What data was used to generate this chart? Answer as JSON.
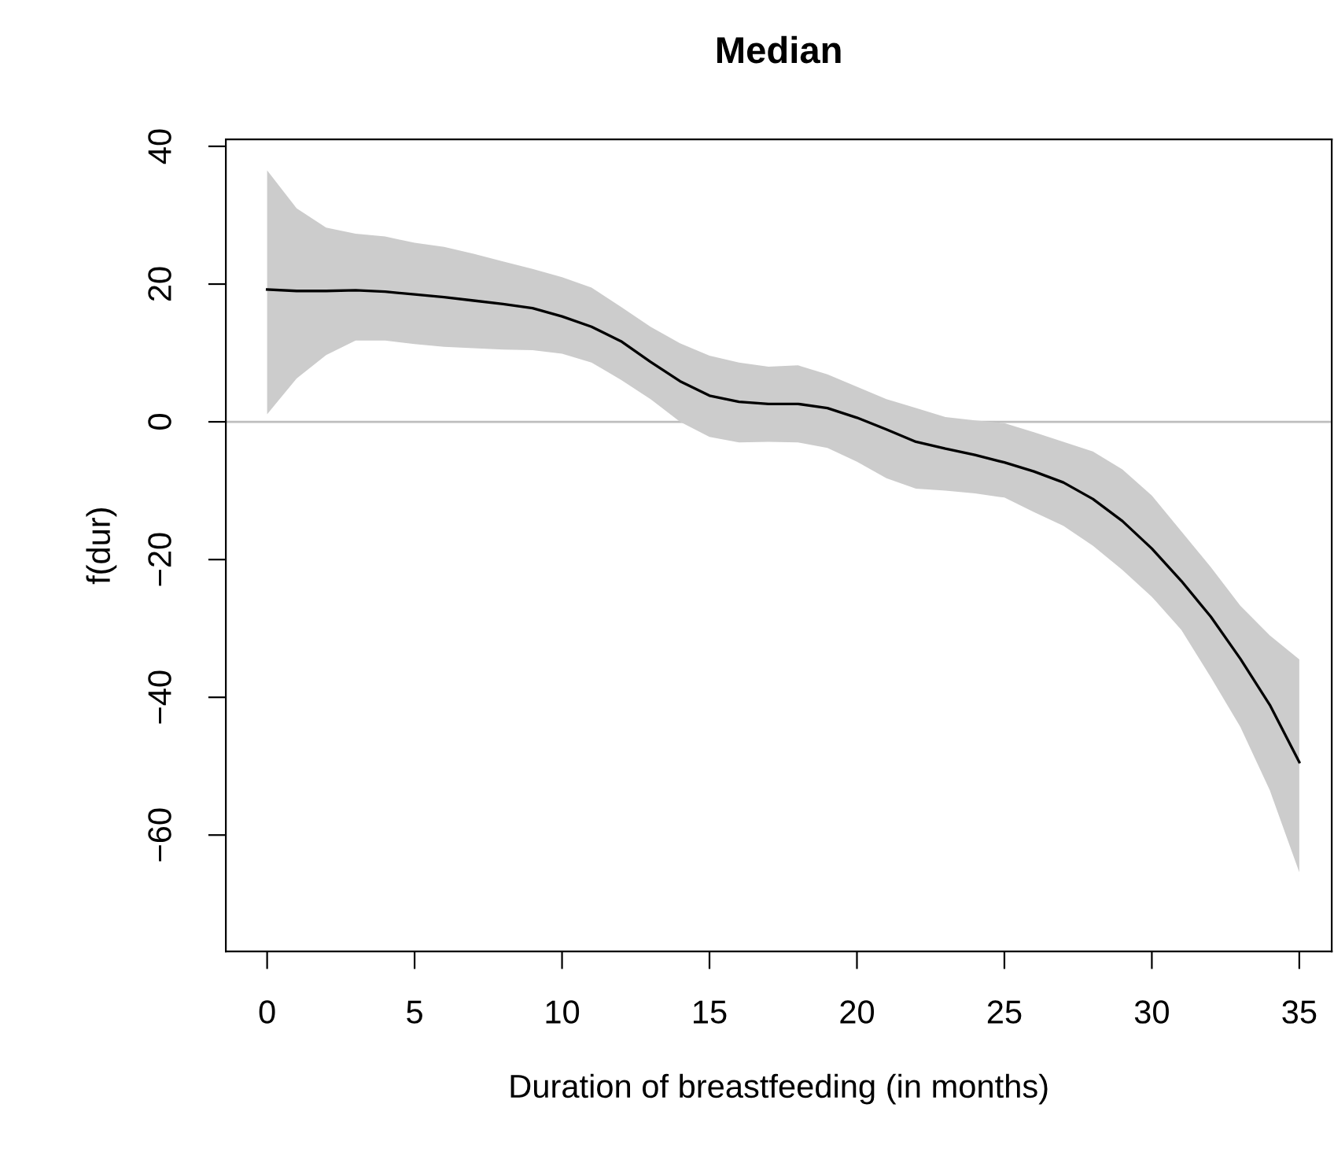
{
  "chart_data": {
    "type": "line",
    "title": "Median",
    "xlabel": "Duration of breastfeeding (in months)",
    "ylabel": "f(dur)",
    "x": [
      0,
      1,
      2,
      3,
      4,
      5,
      6,
      7,
      8,
      9,
      10,
      11,
      12,
      13,
      14,
      15,
      16,
      17,
      18,
      19,
      20,
      21,
      22,
      23,
      24,
      25,
      26,
      27,
      28,
      29,
      30,
      31,
      32,
      33,
      34,
      35
    ],
    "series": [
      {
        "color": "#000000",
        "values": [
          19.2,
          19.0,
          19.0,
          19.1,
          18.9,
          18.5,
          18.1,
          17.6,
          17.1,
          16.5,
          15.3,
          13.8,
          11.7,
          8.7,
          5.9,
          3.8,
          2.9,
          2.6,
          2.6,
          2.0,
          0.6,
          -1.1,
          -2.9,
          -3.9,
          -4.8,
          -5.9,
          -7.2,
          -8.8,
          -11.2,
          -14.4,
          -18.4,
          -23.1,
          -28.3,
          -34.4,
          -41.1,
          -49.4
        ],
        "upper": [
          36.5,
          31.0,
          28.2,
          27.3,
          26.9,
          26.0,
          25.4,
          24.4,
          23.3,
          22.2,
          21.0,
          19.5,
          16.7,
          13.8,
          11.4,
          9.6,
          8.6,
          8.0,
          8.2,
          6.9,
          5.1,
          3.3,
          2.0,
          0.7,
          0.2,
          -0.2,
          -1.5,
          -2.9,
          -4.3,
          -6.9,
          -10.7,
          -15.9,
          -21.1,
          -26.7,
          -31.0,
          -34.5
        ],
        "lower": [
          1.1,
          6.3,
          9.7,
          11.8,
          11.8,
          11.3,
          10.9,
          10.7,
          10.5,
          10.4,
          9.9,
          8.6,
          6.1,
          3.3,
          0.0,
          -2.2,
          -3.0,
          -2.9,
          -3.0,
          -3.8,
          -5.8,
          -8.2,
          -9.7,
          -10.0,
          -10.4,
          -11.0,
          -13.1,
          -15.1,
          -18.0,
          -21.5,
          -25.4,
          -30.2,
          -37.1,
          -44.3,
          -53.5,
          -65.4
        ]
      }
    ],
    "ref_lines": [
      {
        "axis": "y",
        "value": 0,
        "color": "#bebebe"
      }
    ],
    "xlim": [
      -1.4,
      36.1
    ],
    "ylim": [
      -76.9,
      41.0
    ],
    "xticks": [
      0,
      5,
      10,
      15,
      20,
      25,
      30,
      35
    ],
    "yticks": [
      -60,
      -40,
      -20,
      0,
      20,
      40
    ],
    "grid": false,
    "legend": false
  }
}
